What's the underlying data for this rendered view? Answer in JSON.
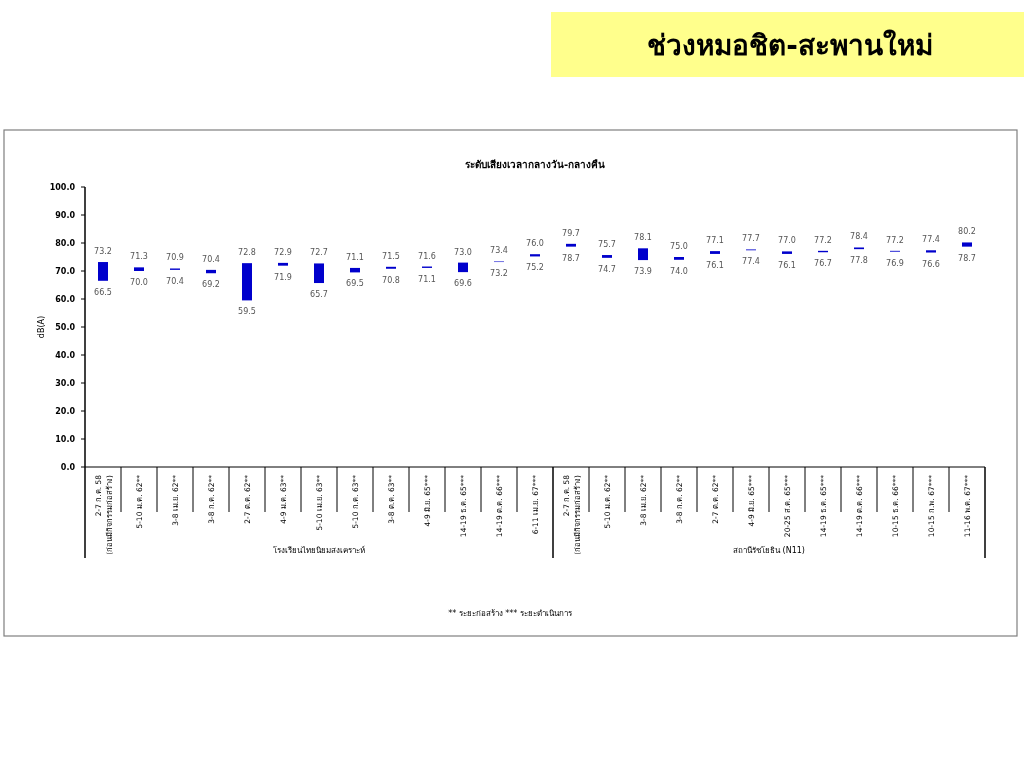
{
  "chart_data": {
    "type": "bar",
    "title": "ช่วงหมอชิต-สะพานใหม่",
    "subtitle": "ระดับเสียงเวลากลางวัน-กลางคืน",
    "ylabel": "dB(A)",
    "categories": [
      "2-7 ก.ค. 58\n(ก่อนมีกิจกรรมก่อสร้าง)",
      "5-10 ม.ค. 62**",
      "3-8 เม.ย. 62**",
      "3-8 ก.ค. 62**",
      "2-7 ต.ค. 62**",
      "4-9 ม.ค. 63**",
      "5-10 เม.ย. 63**",
      "5-10 ก.ค. 63**",
      "3-8 ต.ค. 63**",
      "4-9 มิ.ย. 65***",
      "14-19 ธ.ค. 65***",
      "14-19 ต.ค. 66***",
      "6-11 เม.ย. 67***",
      "2-7 ก.ค. 58\n(ก่อนมีกิจกรรมก่อสร้าง)",
      "5-10 ม.ค. 62**",
      "3-8 เม.ย. 62**",
      "3-8 ก.ค. 62**",
      "2-7 ต.ค. 62**",
      "4-9 มิ.ย. 65***",
      "20-25 ส.ค. 65***",
      "14-19 ธ.ค. 65***",
      "14-19 ต.ค. 66***",
      "10-15 ธ.ค. 66***",
      "10-15 ก.พ. 67***",
      "11-16 พ.ค. 67***"
    ],
    "base": [
      66.5,
      70.0,
      70.4,
      69.2,
      59.5,
      71.9,
      65.7,
      69.5,
      70.8,
      71.1,
      69.6,
      73.2,
      75.2,
      78.7,
      74.7,
      73.9,
      74.0,
      76.1,
      77.4,
      76.1,
      76.7,
      77.8,
      76.9,
      76.6,
      78.7
    ],
    "values": [
      6.7,
      1.3,
      0.5,
      1.2,
      13.3,
      1.0,
      7.0,
      1.6,
      0.7,
      0.5,
      3.4,
      0.2,
      0.8,
      1.0,
      1.0,
      4.2,
      1.0,
      1.0,
      0.3,
      0.9,
      0.5,
      0.6,
      0.3,
      0.8,
      1.5
    ],
    "color": "#0000cc",
    "ylim": [
      0,
      100
    ],
    "yticks": [
      {
        "value": 0,
        "label": "0.0"
      },
      {
        "value": 10,
        "label": "10.0"
      },
      {
        "value": 20,
        "label": "20.0"
      },
      {
        "value": 30,
        "label": "30.0"
      },
      {
        "value": 40,
        "label": "40.0"
      },
      {
        "value": 50,
        "label": "50.0"
      },
      {
        "value": 60,
        "label": "60.0"
      },
      {
        "value": 70,
        "label": "70.0"
      },
      {
        "value": 80,
        "label": "80.0"
      },
      {
        "value": 90,
        "label": "90.0"
      },
      {
        "value": 100,
        "label": "100.0"
      }
    ],
    "grid": false,
    "annotations": [
      {
        "text": "73.2",
        "y": 73.2
      },
      {
        "text": "66.5",
        "y": 66.5
      },
      {
        "text": "71.3",
        "y": 71.3
      },
      {
        "text": "70.0",
        "y": 70.0
      },
      {
        "text": "70.9",
        "y": 70.9
      },
      {
        "text": "70.4",
        "y": 70.4
      },
      {
        "text": "70.4",
        "y": 70.4
      },
      {
        "text": "69.2",
        "y": 69.2
      },
      {
        "text": "72.8",
        "y": 72.8
      },
      {
        "text": "59.5",
        "y": 59.5
      },
      {
        "text": "72.9",
        "y": 72.9
      },
      {
        "text": "71.9",
        "y": 71.9
      },
      {
        "text": "72.7",
        "y": 72.7
      },
      {
        "text": "65.7",
        "y": 65.7
      },
      {
        "text": "71.1",
        "y": 71.1
      },
      {
        "text": "69.5",
        "y": 69.5
      },
      {
        "text": "71.5",
        "y": 71.5
      },
      {
        "text": "70.8",
        "y": 70.8
      },
      {
        "text": "71.6",
        "y": 71.6
      },
      {
        "text": "71.1",
        "y": 71.1
      },
      {
        "text": "73.0",
        "y": 73.0
      },
      {
        "text": "69.6",
        "y": 69.6
      },
      {
        "text": "73.4",
        "y": 73.4
      },
      {
        "text": "73.2",
        "y": 73.2
      },
      {
        "text": "76.0",
        "y": 76.0
      },
      {
        "text": "75.2",
        "y": 75.2
      },
      {
        "text": "79.7",
        "y": 79.7
      },
      {
        "text": "78.7",
        "y": 78.7
      },
      {
        "text": "75.7",
        "y": 75.7
      },
      {
        "text": "74.7",
        "y": 74.7
      },
      {
        "text": "78.1",
        "y": 78.1
      },
      {
        "text": "73.9",
        "y": 73.9
      },
      {
        "text": "75.0",
        "y": 75.0
      },
      {
        "text": "74.0",
        "y": 74.0
      },
      {
        "text": "77.1",
        "y": 77.1
      },
      {
        "text": "76.1",
        "y": 76.1
      },
      {
        "text": "77.7",
        "y": 77.7
      },
      {
        "text": "77.4",
        "y": 77.4
      },
      {
        "text": "77.0",
        "y": 77.0
      },
      {
        "text": "76.1",
        "y": 76.1
      },
      {
        "text": "77.2",
        "y": 77.2
      },
      {
        "text": "76.7",
        "y": 76.7
      },
      {
        "text": "78.4",
        "y": 78.4
      },
      {
        "text": "77.8",
        "y": 77.8
      },
      {
        "text": "77.2",
        "y": 77.2
      },
      {
        "text": "76.9",
        "y": 76.9
      },
      {
        "text": "77.4",
        "y": 77.4
      },
      {
        "text": "76.6",
        "y": 76.6
      },
      {
        "text": "80.2",
        "y": 80.2
      },
      {
        "text": "78.7",
        "y": 78.7
      },
      "โรงเรียนไทยนิยมสงเคราะห์",
      "สถานีรัชโยธิน (N11)",
      "** ระยะก่อสร้าง    *** ระยะดำเนินการ"
    ]
  }
}
